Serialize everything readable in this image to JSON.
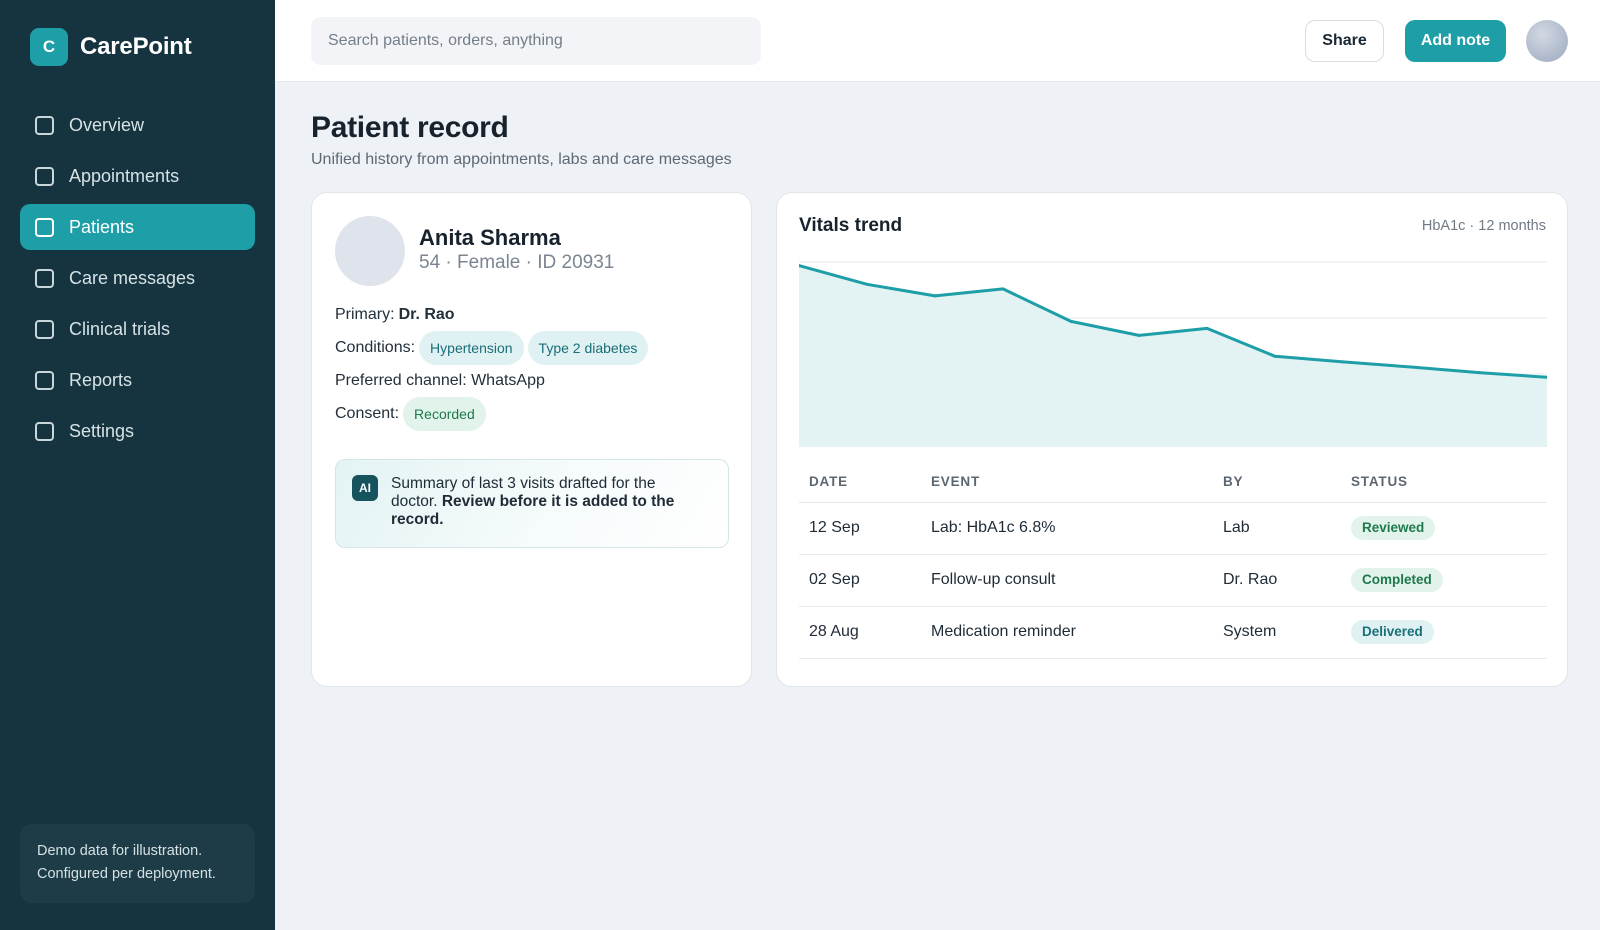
{
  "brand": {
    "mark": "C",
    "name": "CarePoint"
  },
  "nav": [
    {
      "label": "Overview",
      "active": false
    },
    {
      "label": "Appointments",
      "active": false
    },
    {
      "label": "Patients",
      "active": true
    },
    {
      "label": "Care messages",
      "active": false
    },
    {
      "label": "Clinical trials",
      "active": false
    },
    {
      "label": "Reports",
      "active": false
    },
    {
      "label": "Settings",
      "active": false
    }
  ],
  "sidebar_note": {
    "line1": "Demo data for illustration.",
    "line2": "Configured per deployment."
  },
  "topbar": {
    "search_placeholder": "Search patients, orders, anything",
    "share_label": "Share",
    "add_note_label": "Add note"
  },
  "page": {
    "title": "Patient record",
    "subtitle": "Unified history from appointments, labs and care messages"
  },
  "patient": {
    "name": "Anita Sharma",
    "meta": "54 · Female · ID 20931",
    "primary_label": "Primary:",
    "primary_value": "Dr. Rao",
    "conditions_label": "Conditions:",
    "conditions": [
      "Hypertension",
      "Type 2 diabetes"
    ],
    "channel_text": "Preferred channel: WhatsApp",
    "consent_label": "Consent:",
    "consent_value": "Recorded",
    "ai_badge": "AI",
    "ai_summary_plain": "Summary of last 3 visits drafted for the doctor.",
    "ai_summary_bold": "Review before it is added to the record."
  },
  "vitals": {
    "title": "Vitals trend",
    "caption": "HbA1c · 12 months",
    "table": {
      "headers": [
        "DATE",
        "EVENT",
        "BY",
        "STATUS"
      ],
      "rows": [
        {
          "date": "12 Sep",
          "event": "Lab: HbA1c 6.8%",
          "by": "Lab",
          "status": "Reviewed"
        },
        {
          "date": "02 Sep",
          "event": "Follow-up consult",
          "by": "Dr. Rao",
          "status": "Completed"
        },
        {
          "date": "28 Aug",
          "event": "Medication reminder",
          "by": "System",
          "status": "Delivered"
        }
      ]
    }
  },
  "chart_data": {
    "type": "area",
    "title": "Vitals trend",
    "x": [
      1,
      2,
      3,
      4,
      5,
      6,
      7,
      8,
      9,
      10,
      11,
      12
    ],
    "values": [
      8.9,
      8.5,
      8.25,
      8.4,
      7.7,
      7.4,
      7.55,
      6.95,
      6.83,
      6.72,
      6.6,
      6.5
    ],
    "ylim": [
      5,
      9
    ],
    "grid": true,
    "colors": {
      "line": "#1e9ea6",
      "fill": "#e3f2f3",
      "grid": "#e6eaee"
    }
  },
  "colors": {
    "accent": "#1e9ea6",
    "sidebar_bg": "#15343f",
    "status_reviewed_bg": "#e1f3ea",
    "status_reviewed_fg": "#1e7a4c",
    "status_completed_bg": "#e1f3ea",
    "status_completed_fg": "#1e7a4c",
    "status_delivered_bg": "#dff1f2",
    "status_delivered_fg": "#1a6f78"
  }
}
